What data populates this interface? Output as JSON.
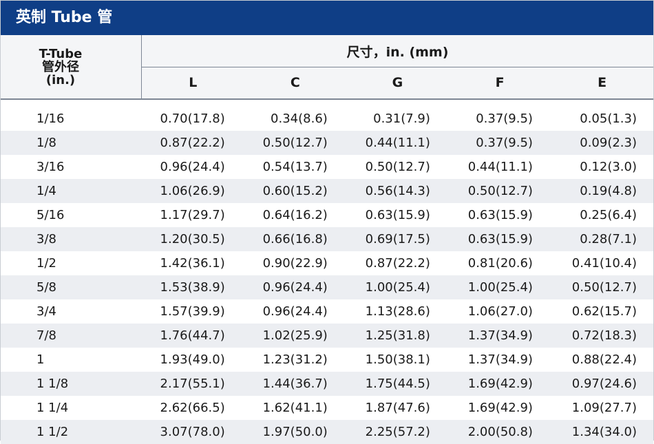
{
  "title": "英制 Tube 管",
  "header": {
    "first_col": [
      "T-Tube",
      "管外径",
      "(in.)"
    ],
    "group_label": "尺寸，in. (mm)",
    "columns": [
      "L",
      "C",
      "G",
      "F",
      "E"
    ]
  },
  "rows": [
    {
      "size": "1/16",
      "values": [
        "0.70(17.8)",
        "0.34(8.6)",
        "0.31(7.9)",
        "0.37(9.5)",
        "0.05(1.3)"
      ]
    },
    {
      "size": "1/8",
      "values": [
        "0.87(22.2)",
        "0.50(12.7)",
        "0.44(11.1)",
        "0.37(9.5)",
        "0.09(2.3)"
      ]
    },
    {
      "size": "3/16",
      "values": [
        "0.96(24.4)",
        "0.54(13.7)",
        "0.50(12.7)",
        "0.44(11.1)",
        "0.12(3.0)"
      ]
    },
    {
      "size": "1/4",
      "values": [
        "1.06(26.9)",
        "0.60(15.2)",
        "0.56(14.3)",
        "0.50(12.7)",
        "0.19(4.8)"
      ]
    },
    {
      "size": "5/16",
      "values": [
        "1.17(29.7)",
        "0.64(16.2)",
        "0.63(15.9)",
        "0.63(15.9)",
        "0.25(6.4)"
      ]
    },
    {
      "size": "3/8",
      "values": [
        "1.20(30.5)",
        "0.66(16.8)",
        "0.69(17.5)",
        "0.63(15.9)",
        "0.28(7.1)"
      ]
    },
    {
      "size": "1/2",
      "values": [
        "1.42(36.1)",
        "0.90(22.9)",
        "0.87(22.2)",
        "0.81(20.6)",
        "0.41(10.4)"
      ]
    },
    {
      "size": "5/8",
      "values": [
        "1.53(38.9)",
        "0.96(24.4)",
        "1.00(25.4)",
        "1.00(25.4)",
        "0.50(12.7)"
      ]
    },
    {
      "size": "3/4",
      "values": [
        "1.57(39.9)",
        "0.96(24.4)",
        "1.13(28.6)",
        "1.06(27.0)",
        "0.62(15.7)"
      ]
    },
    {
      "size": "7/8",
      "values": [
        "1.76(44.7)",
        "1.02(25.9)",
        "1.25(31.8)",
        "1.37(34.9)",
        "0.72(18.3)"
      ]
    },
    {
      "size": "1",
      "values": [
        "1.93(49.0)",
        "1.23(31.2)",
        "1.50(38.1)",
        "1.37(34.9)",
        "0.88(22.4)"
      ]
    },
    {
      "size": "1 1/8",
      "values": [
        "2.17(55.1)",
        "1.44(36.7)",
        "1.75(44.5)",
        "1.69(42.9)",
        "0.97(24.6)"
      ]
    },
    {
      "size": "1 1/4",
      "values": [
        "2.62(66.5)",
        "1.62(41.1)",
        "1.87(47.6)",
        "1.69(42.9)",
        "1.09(27.7)"
      ]
    },
    {
      "size": "1 1/2",
      "values": [
        "3.07(78.0)",
        "1.97(50.0)",
        "2.25(57.2)",
        "2.00(50.8)",
        "1.34(34.0)"
      ]
    }
  ],
  "colors": {
    "banner": "#0f3e86",
    "stripe": "#eceef2",
    "rule": "#7d8694"
  }
}
